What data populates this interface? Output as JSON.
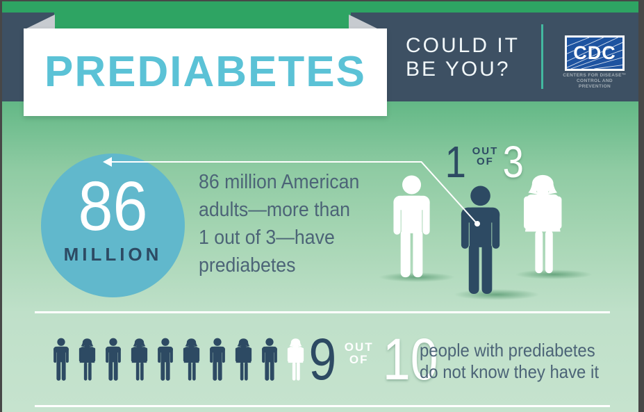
{
  "colors": {
    "frame": "#474747",
    "green_strip": "#2ea463",
    "header_bg": "#3d5063",
    "banner_text": "#5bc2d6",
    "fold_gray": "#c7cbd0",
    "tagline": "#f2f8fa",
    "teal_divider": "#43b9a0",
    "cdc_blue": "#1d53a0",
    "cdc_subtext": "#a3aeb6",
    "bg_top": "#63b886",
    "bg_mid": "#a8d6b5",
    "bg_bottom": "#c6e3ce",
    "circle": "#61b8cc",
    "navy": "#2d4a63",
    "slate": "#4c6477"
  },
  "header": {
    "title": "PREDIABETES",
    "tagline_line1": "COULD IT",
    "tagline_line2": "BE YOU?",
    "cdc_acronym": "CDC",
    "cdc_name_line1": "CENTERS FOR DISEASE™",
    "cdc_name_line2": "CONTROL AND PREVENTION"
  },
  "stat1": {
    "big_number": "86",
    "big_number_label": "MILLION",
    "description_lines": [
      "86 million American",
      "adults—more than",
      "1 out of 3—have",
      "prediabetes"
    ],
    "ratio": {
      "numerator": "1",
      "word_out": "OUT",
      "word_of": "OF",
      "denominator": "3"
    },
    "figures": [
      {
        "type": "male",
        "color": "white"
      },
      {
        "type": "male",
        "color": "navy"
      },
      {
        "type": "female",
        "color": "white"
      }
    ]
  },
  "stat2": {
    "ratio": {
      "numerator": "9",
      "word_out": "OUT",
      "word_of": "OF",
      "denominator": "10"
    },
    "description_line1": "people with prediabetes",
    "description_line2": "do not know they have it",
    "figures": [
      {
        "type": "male",
        "color": "navy"
      },
      {
        "type": "female",
        "color": "navy"
      },
      {
        "type": "male",
        "color": "navy"
      },
      {
        "type": "female",
        "color": "navy"
      },
      {
        "type": "male",
        "color": "navy"
      },
      {
        "type": "female",
        "color": "navy"
      },
      {
        "type": "male",
        "color": "navy"
      },
      {
        "type": "female",
        "color": "navy"
      },
      {
        "type": "male",
        "color": "navy"
      },
      {
        "type": "female",
        "color": "white"
      }
    ]
  },
  "icons": {
    "male": "male-figure-icon",
    "female": "female-figure-icon",
    "arrow": "callout-arrow-icon",
    "cdc_rays": "cdc-rays-icon"
  }
}
